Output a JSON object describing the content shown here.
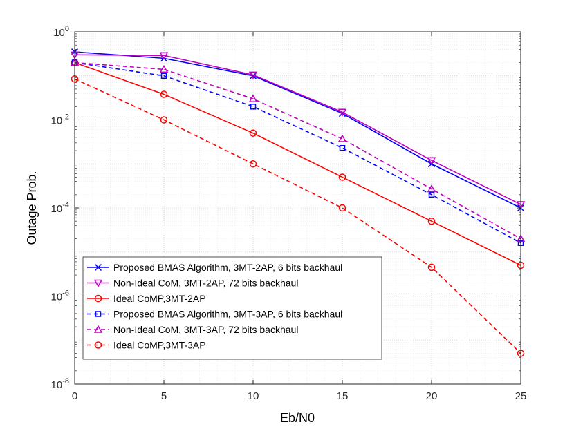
{
  "chart_data": {
    "type": "line",
    "xlabel": "Eb/N0",
    "ylabel": "Outage Prob.",
    "xlim": [
      0,
      25
    ],
    "ylim_exponent": [
      -8,
      0
    ],
    "yscale": "log",
    "grid": true,
    "legend_position": "bottom-left",
    "x_ticks": [
      "0",
      "5",
      "10",
      "15",
      "20",
      "25"
    ],
    "y_ticks": [
      {
        "base": "10",
        "exp": "0"
      },
      {
        "base": "10",
        "exp": "-2"
      },
      {
        "base": "10",
        "exp": "-4"
      },
      {
        "base": "10",
        "exp": "-6"
      },
      {
        "base": "10",
        "exp": "-8"
      }
    ],
    "x": [
      0,
      5,
      10,
      15,
      20,
      25
    ],
    "series": [
      {
        "name": "Proposed BMAS Algorithm, 3MT-2AP, 6 bits backhaul",
        "color": "#0000ff",
        "dash": "solid",
        "marker": "x",
        "values": [
          0.35,
          0.25,
          0.1,
          0.014,
          0.001,
          0.0001
        ]
      },
      {
        "name": "Non-Ideal CoM, 3MT-2AP, 72 bits backhaul",
        "color": "#bf00bf",
        "dash": "solid",
        "marker": "triangle-down",
        "values": [
          0.3,
          0.29,
          0.105,
          0.015,
          0.0012,
          0.00012
        ]
      },
      {
        "name": "Ideal CoMP,3MT-2AP",
        "color": "#ff0000",
        "dash": "solid",
        "marker": "circle",
        "values": [
          0.2,
          0.038,
          0.005,
          0.0005,
          5e-05,
          5e-06
        ]
      },
      {
        "name": "Proposed BMAS Algorithm, 3MT-3AP, 6 bits backhaul",
        "color": "#0000ff",
        "dash": "dashed",
        "marker": "square",
        "values": [
          0.2,
          0.1,
          0.02,
          0.0023,
          0.0002,
          1.6e-05
        ]
      },
      {
        "name": "Non-Ideal CoM, 3MT-3AP, 72 bits backhaul",
        "color": "#bf00bf",
        "dash": "dashed",
        "marker": "triangle-up",
        "values": [
          0.2,
          0.14,
          0.03,
          0.0037,
          0.00027,
          2e-05
        ]
      },
      {
        "name": "Ideal CoMP,3MT-3AP",
        "color": "#ff0000",
        "dash": "dashed",
        "marker": "circle",
        "values": [
          0.085,
          0.01,
          0.001,
          0.0001,
          4.5e-06,
          5e-08
        ]
      }
    ]
  }
}
